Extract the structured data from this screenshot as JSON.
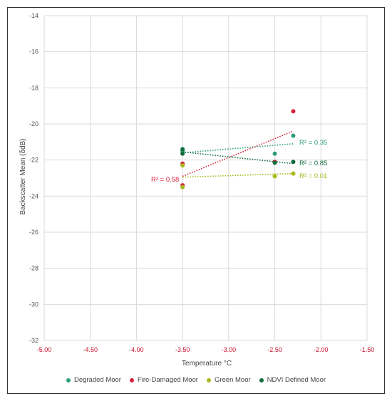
{
  "chart_data": {
    "type": "scatter",
    "xlabel": "Temperature °C",
    "ylabel": "Backscatter Mean (δdB)",
    "xlim": [
      -5.0,
      -1.5
    ],
    "ylim": [
      -32,
      -14
    ],
    "x_ticks": [
      "-5.00",
      "-4.50",
      "-4.00",
      "-3.50",
      "-3.00",
      "-2.50",
      "-2.00",
      "-1.50"
    ],
    "y_ticks": [
      "-14",
      "-16",
      "-18",
      "-20",
      "-22",
      "-24",
      "-26",
      "-28",
      "-30",
      "-32"
    ],
    "grid": true,
    "legend_position": "bottom",
    "series": [
      {
        "name": "Degraded Moor",
        "color": "#2e9e7a",
        "points": [
          [
            -3.5,
            -21.5
          ],
          [
            -2.5,
            -21.65
          ],
          [
            -2.3,
            -20.65
          ]
        ],
        "trendline": {
          "x": [
            -3.5,
            -2.3
          ],
          "y": [
            -21.6,
            -21.1
          ]
        },
        "r2_label": "R² = 0.35"
      },
      {
        "name": "Fire-Damaged Moor",
        "color": "#d81f3c",
        "points": [
          [
            -3.5,
            -22.2
          ],
          [
            -3.5,
            -23.4
          ],
          [
            -2.5,
            -22.1
          ],
          [
            -2.3,
            -19.3
          ]
        ],
        "trendline": {
          "x": [
            -3.5,
            -2.3
          ],
          "y": [
            -22.9,
            -20.4
          ]
        },
        "r2_label": "R² = 0.58"
      },
      {
        "name": "Green Moor",
        "color": "#a8b81a",
        "points": [
          [
            -3.5,
            -22.3
          ],
          [
            -3.5,
            -23.5
          ],
          [
            -2.5,
            -22.9
          ],
          [
            -2.3,
            -22.75
          ]
        ],
        "trendline": {
          "x": [
            -3.5,
            -2.3
          ],
          "y": [
            -22.95,
            -22.75
          ]
        },
        "r2_label": "R² = 0.01"
      },
      {
        "name": "NDVI Defined Moor",
        "color": "#0f6b3c",
        "points": [
          [
            -3.5,
            -21.4
          ],
          [
            -3.5,
            -21.65
          ],
          [
            -2.5,
            -22.15
          ],
          [
            -2.3,
            -22.1
          ]
        ],
        "trendline": {
          "x": [
            -3.5,
            -2.3
          ],
          "y": [
            -21.55,
            -22.2
          ]
        },
        "r2_label": "R² = 0.85"
      }
    ]
  },
  "colors": {
    "axis_tick_x": "#c8102e",
    "axis_tick_y": "#555555",
    "grid": "#d9d9d9"
  }
}
